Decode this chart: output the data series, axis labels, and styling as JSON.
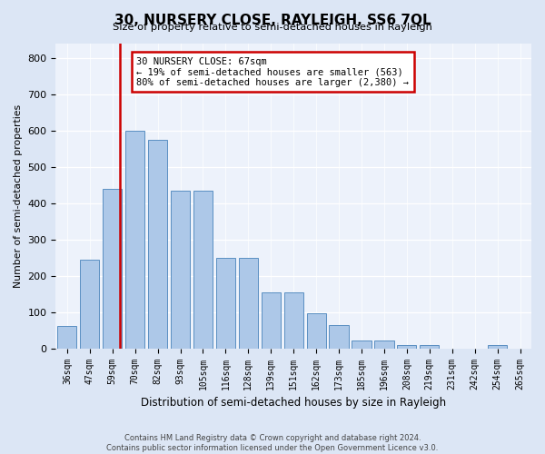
{
  "title": "30, NURSERY CLOSE, RAYLEIGH, SS6 7QL",
  "subtitle": "Size of property relative to semi-detached houses in Rayleigh",
  "xlabel": "Distribution of semi-detached houses by size in Rayleigh",
  "ylabel": "Number of semi-detached properties",
  "categories": [
    "36sqm",
    "47sqm",
    "59sqm",
    "70sqm",
    "82sqm",
    "93sqm",
    "105sqm",
    "116sqm",
    "128sqm",
    "139sqm",
    "151sqm",
    "162sqm",
    "173sqm",
    "185sqm",
    "196sqm",
    "208sqm",
    "219sqm",
    "231sqm",
    "242sqm",
    "254sqm",
    "265sqm"
  ],
  "values": [
    62,
    245,
    440,
    600,
    575,
    435,
    435,
    250,
    250,
    155,
    155,
    97,
    63,
    22,
    22,
    9,
    9,
    0,
    0,
    8,
    0
  ],
  "bar_color": "#adc8e8",
  "bar_edge_color": "#5a8fc2",
  "vline_x": 2.35,
  "vline_color": "#cc0000",
  "annotation_text": "30 NURSERY CLOSE: 67sqm\n← 19% of semi-detached houses are smaller (563)\n80% of semi-detached houses are larger (2,380) →",
  "annotation_box_facecolor": "#ffffff",
  "annotation_box_edgecolor": "#cc0000",
  "ylim_max": 840,
  "yticks": [
    0,
    100,
    200,
    300,
    400,
    500,
    600,
    700,
    800
  ],
  "bg_color": "#dce6f5",
  "plot_bg_color": "#edf2fb",
  "footer": "Contains HM Land Registry data © Crown copyright and database right 2024.\nContains public sector information licensed under the Open Government Licence v3.0."
}
